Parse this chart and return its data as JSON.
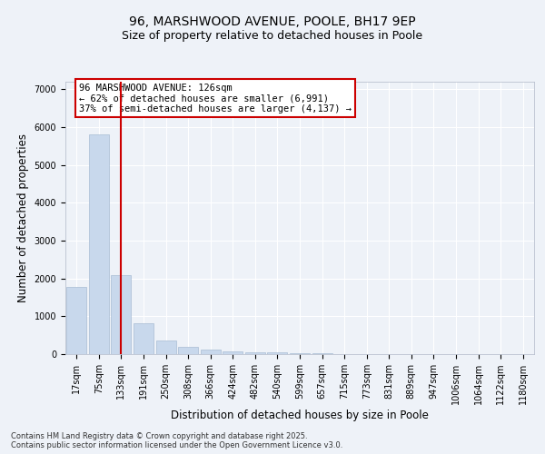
{
  "title1": "96, MARSHWOOD AVENUE, POOLE, BH17 9EP",
  "title2": "Size of property relative to detached houses in Poole",
  "xlabel": "Distribution of detached houses by size in Poole",
  "ylabel": "Number of detached properties",
  "categories": [
    "17sqm",
    "75sqm",
    "133sqm",
    "191sqm",
    "250sqm",
    "308sqm",
    "366sqm",
    "424sqm",
    "482sqm",
    "540sqm",
    "599sqm",
    "657sqm",
    "715sqm",
    "773sqm",
    "831sqm",
    "889sqm",
    "947sqm",
    "1006sqm",
    "1064sqm",
    "1122sqm",
    "1180sqm"
  ],
  "values": [
    1780,
    5800,
    2100,
    820,
    360,
    200,
    120,
    80,
    60,
    50,
    30,
    15,
    10,
    5,
    4,
    4,
    3,
    3,
    2,
    2,
    2
  ],
  "bar_color": "#c8d8ec",
  "bar_edge_color": "#a8bcd4",
  "vline_x_index": 2,
  "vline_color": "#cc0000",
  "annotation_text": "96 MARSHWOOD AVENUE: 126sqm\n← 62% of detached houses are smaller (6,991)\n37% of semi-detached houses are larger (4,137) →",
  "annotation_box_color": "#cc0000",
  "ylim": [
    0,
    7200
  ],
  "yticks": [
    0,
    1000,
    2000,
    3000,
    4000,
    5000,
    6000,
    7000
  ],
  "background_color": "#eef2f8",
  "plot_bg_color": "#eef2f8",
  "grid_color": "#ffffff",
  "footnote": "Contains HM Land Registry data © Crown copyright and database right 2025.\nContains public sector information licensed under the Open Government Licence v3.0.",
  "title_fontsize": 10,
  "subtitle_fontsize": 9,
  "tick_fontsize": 7,
  "label_fontsize": 8.5,
  "annot_fontsize": 7.5
}
